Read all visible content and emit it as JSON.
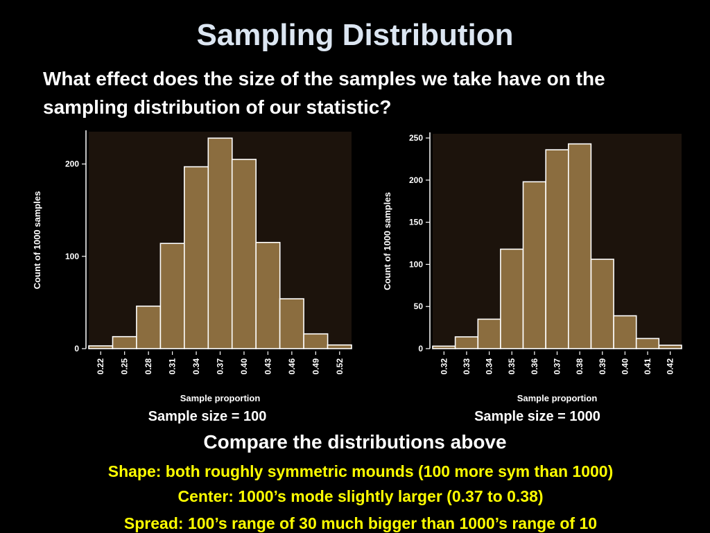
{
  "slide": {
    "title": "Sampling Distribution",
    "question": "What effect does the size of the samples we take have on the sampling distribution of our statistic?",
    "compare_heading": "Compare the distributions above",
    "findings": {
      "shape": "Shape: both roughly symmetric mounds (100 more sym than 1000)",
      "center": "Center:  1000’s mode slightly larger (0.37 to 0.38)",
      "spread": "Spread: 100’s range of 30 much bigger than 1000’s range of 10"
    },
    "text_color": "#ffff00"
  },
  "chart_data": [
    {
      "type": "bar",
      "caption": "Sample size = 100",
      "xlabel": "Sample proportion",
      "ylabel": "Count of 1000 samples",
      "categories": [
        "0.22",
        "0.25",
        "0.28",
        "0.31",
        "0.34",
        "0.37",
        "0.40",
        "0.43",
        "0.46",
        "0.49",
        "0.52"
      ],
      "values": [
        3,
        13,
        46,
        114,
        197,
        228,
        205,
        115,
        54,
        16,
        4
      ],
      "ylim": [
        0,
        235
      ],
      "yticks": [
        0,
        100,
        200
      ],
      "grid": false,
      "bar_color": "#8b6d3f",
      "plot_bg": "#1c130c"
    },
    {
      "type": "bar",
      "caption": "Sample size = 1000",
      "xlabel": "Sample proportion",
      "ylabel": "Count of 1000 samples",
      "categories": [
        "0.32",
        "0.33",
        "0.34",
        "0.35",
        "0.36",
        "0.37",
        "0.38",
        "0.39",
        "0.40",
        "0.41",
        "0.42"
      ],
      "values": [
        3,
        14,
        35,
        118,
        198,
        236,
        243,
        106,
        39,
        12,
        4
      ],
      "ylim": [
        0,
        255
      ],
      "yticks": [
        0,
        50,
        100,
        150,
        200,
        250
      ],
      "grid": false,
      "bar_color": "#8b6d3f",
      "plot_bg": "#1c130c"
    }
  ]
}
